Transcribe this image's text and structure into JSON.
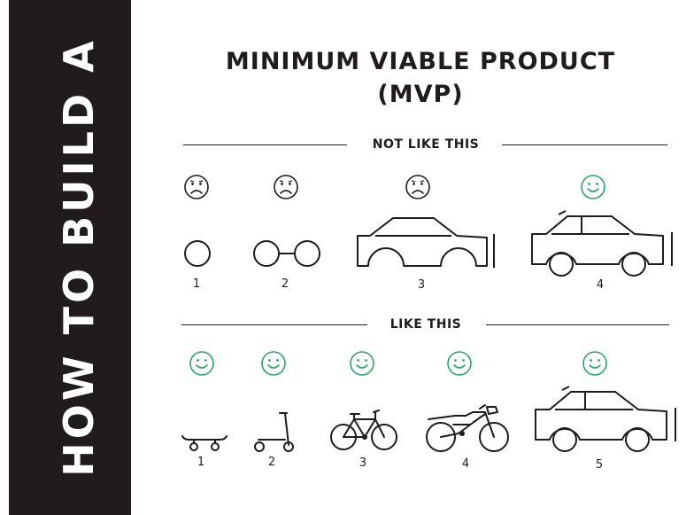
{
  "sidebar": {
    "text": "HOW TO BUILD A"
  },
  "title": {
    "line1": "MINIMUM VIABLE PRODUCT",
    "line2": "(MVP)"
  },
  "colors": {
    "sad": "#1f1c1b",
    "happy": "#2aa66a",
    "sidebar": "#1f1c1b"
  },
  "not_like_this": {
    "label": "NOT LIKE THIS",
    "steps": [
      {
        "number": "1",
        "mood": "sad",
        "icon": "wheel-icon"
      },
      {
        "number": "2",
        "mood": "sad",
        "icon": "wheels-axle-icon"
      },
      {
        "number": "3",
        "mood": "sad",
        "icon": "car-body-icon"
      },
      {
        "number": "4",
        "mood": "happy",
        "icon": "car-icon"
      }
    ]
  },
  "like_this": {
    "label": "LIKE THIS",
    "steps": [
      {
        "number": "1",
        "mood": "happy",
        "icon": "skateboard-icon"
      },
      {
        "number": "2",
        "mood": "happy",
        "icon": "scooter-icon"
      },
      {
        "number": "3",
        "mood": "happy",
        "icon": "bicycle-icon"
      },
      {
        "number": "4",
        "mood": "happy",
        "icon": "motorcycle-icon"
      },
      {
        "number": "5",
        "mood": "happy",
        "icon": "car-icon"
      }
    ]
  }
}
